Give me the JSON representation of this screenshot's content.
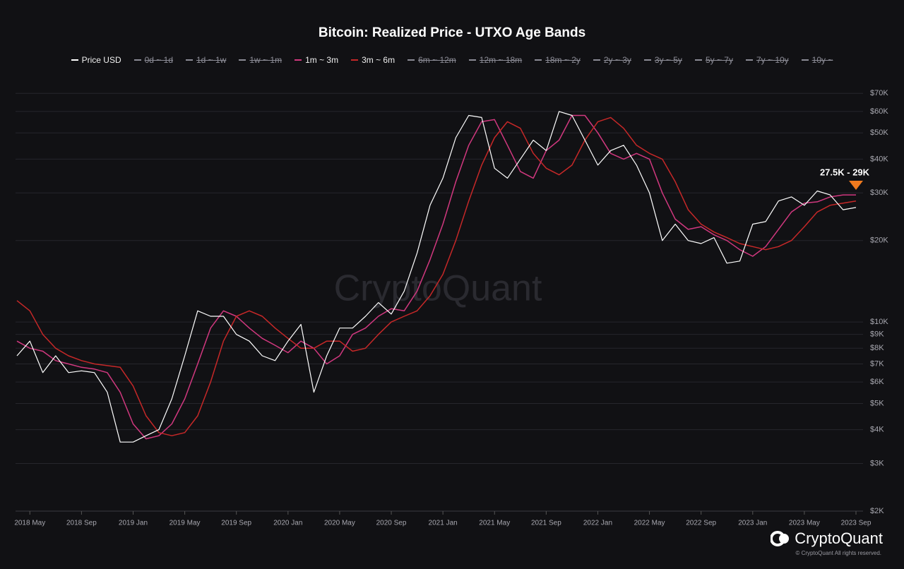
{
  "chart_data": {
    "type": "line",
    "title": "Bitcoin: Realized Price - UTXO Age Bands",
    "log_scale": true,
    "grid": true,
    "watermark": "CryptoQuant",
    "brand": "CryptoQuant",
    "copyright": "© CryptoQuant All rights reserved.",
    "annotation": {
      "text": "27.5K - 29K",
      "color": "#f07a1e"
    },
    "x": [
      "2018-04",
      "2018-05",
      "2018-06",
      "2018-07",
      "2018-08",
      "2018-09",
      "2018-10",
      "2018-11",
      "2018-12",
      "2019-01",
      "2019-02",
      "2019-03",
      "2019-04",
      "2019-05",
      "2019-06",
      "2019-07",
      "2019-08",
      "2019-09",
      "2019-10",
      "2019-11",
      "2019-12",
      "2020-01",
      "2020-02",
      "2020-03",
      "2020-04",
      "2020-05",
      "2020-06",
      "2020-07",
      "2020-08",
      "2020-09",
      "2020-10",
      "2020-11",
      "2020-12",
      "2021-01",
      "2021-02",
      "2021-03",
      "2021-04",
      "2021-05",
      "2021-06",
      "2021-07",
      "2021-08",
      "2021-09",
      "2021-10",
      "2021-11",
      "2021-12",
      "2022-01",
      "2022-02",
      "2022-03",
      "2022-04",
      "2022-05",
      "2022-06",
      "2022-07",
      "2022-08",
      "2022-09",
      "2022-10",
      "2022-11",
      "2022-12",
      "2023-01",
      "2023-02",
      "2023-03",
      "2023-04",
      "2023-05",
      "2023-06",
      "2023-07",
      "2023-08",
      "2023-09"
    ],
    "xlim": [
      "2018-04",
      "2023-09"
    ],
    "xticks": [
      {
        "value": "2018-05",
        "label": "2018 May"
      },
      {
        "value": "2018-09",
        "label": "2018 Sep"
      },
      {
        "value": "2019-01",
        "label": "2019 Jan"
      },
      {
        "value": "2019-05",
        "label": "2019 May"
      },
      {
        "value": "2019-09",
        "label": "2019 Sep"
      },
      {
        "value": "2020-01",
        "label": "2020 Jan"
      },
      {
        "value": "2020-05",
        "label": "2020 May"
      },
      {
        "value": "2020-09",
        "label": "2020 Sep"
      },
      {
        "value": "2021-01",
        "label": "2021 Jan"
      },
      {
        "value": "2021-05",
        "label": "2021 May"
      },
      {
        "value": "2021-09",
        "label": "2021 Sep"
      },
      {
        "value": "2022-01",
        "label": "2022 Jan"
      },
      {
        "value": "2022-05",
        "label": "2022 May"
      },
      {
        "value": "2022-09",
        "label": "2022 Sep"
      },
      {
        "value": "2023-01",
        "label": "2023 Jan"
      },
      {
        "value": "2023-05",
        "label": "2023 May"
      },
      {
        "value": "2023-09",
        "label": "2023 Sep"
      }
    ],
    "ylim": [
      2000,
      80000
    ],
    "yticks": [
      {
        "value": 2000,
        "label": "$2K"
      },
      {
        "value": 3000,
        "label": "$3K"
      },
      {
        "value": 4000,
        "label": "$4K"
      },
      {
        "value": 5000,
        "label": "$5K"
      },
      {
        "value": 6000,
        "label": "$6K"
      },
      {
        "value": 7000,
        "label": "$7K"
      },
      {
        "value": 8000,
        "label": "$8K"
      },
      {
        "value": 9000,
        "label": "$9K"
      },
      {
        "value": 10000,
        "label": "$10K"
      },
      {
        "value": 20000,
        "label": "$20K"
      },
      {
        "value": 30000,
        "label": "$30K"
      },
      {
        "value": 40000,
        "label": "$40K"
      },
      {
        "value": 50000,
        "label": "$50K"
      },
      {
        "value": 60000,
        "label": "$60K"
      },
      {
        "value": 70000,
        "label": "$70K"
      }
    ],
    "series": [
      {
        "name": "Price USD",
        "color": "#ffffff",
        "visible": true,
        "values": [
          7500,
          8500,
          6500,
          7500,
          6500,
          6600,
          6500,
          5500,
          3600,
          3600,
          3800,
          4000,
          5200,
          7500,
          11000,
          10500,
          10500,
          9000,
          8500,
          7500,
          7200,
          8500,
          9800,
          5500,
          7500,
          9500,
          9500,
          10500,
          11800,
          10700,
          13000,
          18000,
          27000,
          34000,
          48000,
          58000,
          57000,
          37000,
          34000,
          40000,
          47000,
          43000,
          60000,
          58000,
          47000,
          38000,
          43000,
          45000,
          38000,
          30000,
          20000,
          23000,
          20000,
          19500,
          20500,
          16500,
          16800,
          23000,
          23500,
          28000,
          29000,
          27000,
          30500,
          29500,
          26000,
          26500
        ]
      },
      {
        "name": "0d ~ 1d",
        "color": "#8c8c96",
        "visible": false
      },
      {
        "name": "1d ~ 1w",
        "color": "#8c8c96",
        "visible": false
      },
      {
        "name": "1w ~ 1m",
        "color": "#8c8c96",
        "visible": false
      },
      {
        "name": "1m ~ 3m",
        "color": "#d1387f",
        "visible": true,
        "values": [
          8500,
          8000,
          7800,
          7200,
          7000,
          6800,
          6700,
          6500,
          5500,
          4200,
          3700,
          3800,
          4200,
          5200,
          7000,
          9500,
          11000,
          10500,
          9500,
          8700,
          8200,
          7700,
          8500,
          8000,
          7000,
          7500,
          9000,
          9500,
          10500,
          11200,
          11000,
          13000,
          17000,
          23000,
          33000,
          45000,
          55000,
          56000,
          45000,
          36000,
          34000,
          43000,
          47000,
          58000,
          58000,
          50000,
          42000,
          40000,
          42000,
          40000,
          30000,
          24000,
          22000,
          22500,
          21000,
          20000,
          18500,
          17500,
          19000,
          22000,
          25500,
          27500,
          27800,
          29000,
          29500,
          29500
        ]
      },
      {
        "name": "3m ~ 6m",
        "color": "#c62828",
        "visible": true,
        "values": [
          12000,
          11000,
          9000,
          8000,
          7500,
          7200,
          7000,
          6900,
          6800,
          5800,
          4500,
          3900,
          3800,
          3900,
          4500,
          6000,
          8500,
          10500,
          11000,
          10500,
          9500,
          8700,
          8000,
          8000,
          8500,
          8500,
          7800,
          8000,
          9000,
          10000,
          10500,
          11000,
          12500,
          15000,
          20000,
          28000,
          38000,
          48000,
          55000,
          52000,
          42000,
          37000,
          35000,
          38000,
          47000,
          55000,
          57000,
          52000,
          45000,
          42000,
          40000,
          33000,
          26000,
          23000,
          21500,
          20500,
          19500,
          19000,
          18500,
          19000,
          20000,
          22500,
          25500,
          27000,
          27500,
          28000
        ]
      },
      {
        "name": "6m ~ 12m",
        "color": "#8c8c96",
        "visible": false
      },
      {
        "name": "12m ~ 18m",
        "color": "#8c8c96",
        "visible": false
      },
      {
        "name": "18m ~ 2y",
        "color": "#8c8c96",
        "visible": false
      },
      {
        "name": "2y ~ 3y",
        "color": "#8c8c96",
        "visible": false
      },
      {
        "name": "3y ~ 5y",
        "color": "#8c8c96",
        "visible": false
      },
      {
        "name": "5y ~ 7y",
        "color": "#8c8c96",
        "visible": false
      },
      {
        "name": "7y ~ 10y",
        "color": "#8c8c96",
        "visible": false
      },
      {
        "name": "10y ~",
        "color": "#8c8c96",
        "visible": false
      }
    ]
  }
}
